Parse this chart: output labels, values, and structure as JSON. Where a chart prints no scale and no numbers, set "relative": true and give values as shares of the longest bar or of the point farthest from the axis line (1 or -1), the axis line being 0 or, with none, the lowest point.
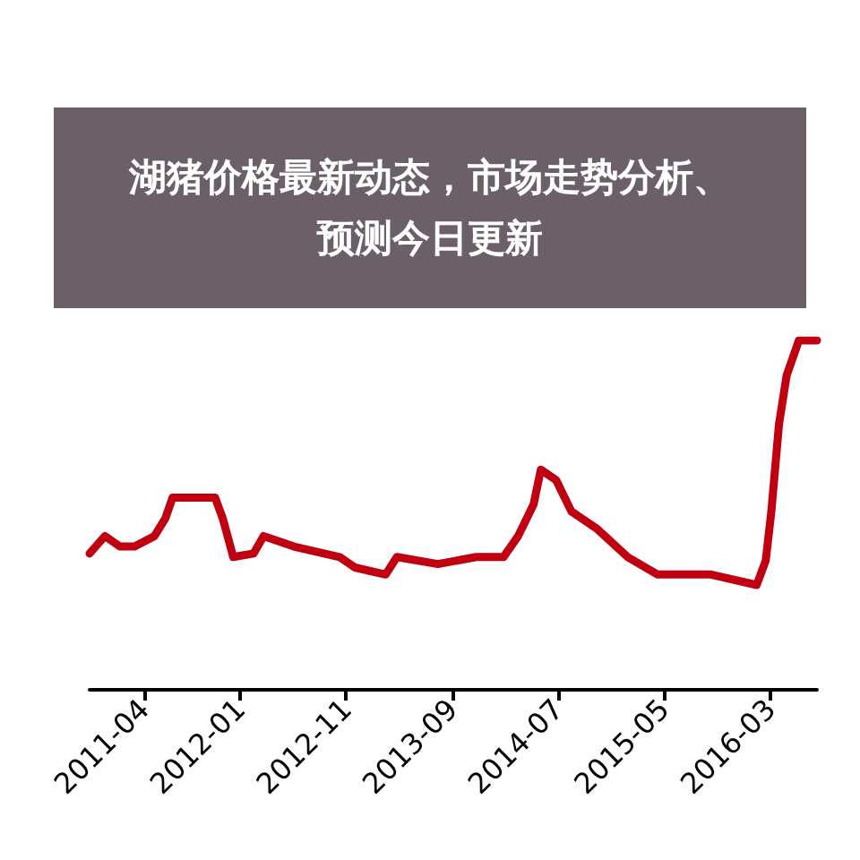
{
  "chart_data": {
    "type": "line",
    "title": "湖猪价格最新动态，市场走势分析、预测今日更新",
    "relative": true,
    "x": [
      "2010-10-27",
      "2010-12-10",
      "2011-01-22",
      "2011-03-05",
      "2011-05-01",
      "2011-06-01",
      "2011-06-22",
      "2011-10-22",
      "2011-11-13",
      "2011-12-13",
      "2012-02-09",
      "2012-03-09",
      "2012-06-04",
      "2012-10-13",
      "2012-11-26",
      "2013-02-22",
      "2013-03-26",
      "2013-07-22",
      "2013-11-09",
      "2014-01-26",
      "2014-03-09",
      "2014-04-22",
      "2014-05-13",
      "2014-06-26",
      "2014-08-09",
      "2014-10-22",
      "2015-01-17",
      "2015-04-13",
      "2015-09-13",
      "2016-01-22",
      "2016-02-17",
      "2016-03-04",
      "2016-03-26",
      "2016-04-17",
      "2016-05-22",
      "2016-07-13"
    ],
    "values": [
      0.39,
      0.44,
      0.41,
      0.41,
      0.44,
      0.49,
      0.55,
      0.55,
      0.49,
      0.38,
      0.39,
      0.44,
      0.41,
      0.38,
      0.35,
      0.33,
      0.38,
      0.36,
      0.38,
      0.38,
      0.44,
      0.53,
      0.63,
      0.6,
      0.51,
      0.46,
      0.38,
      0.33,
      0.33,
      0.3,
      0.37,
      0.51,
      0.76,
      0.9,
      1.0,
      1.0
    ],
    "color": "#c00010",
    "xlim": [
      "2010-10-27",
      "2016-07-13"
    ],
    "xticks": [
      "2011-04",
      "2012-01",
      "2012-11",
      "2013-09",
      "2014-07",
      "2015-05",
      "2016-03"
    ]
  }
}
